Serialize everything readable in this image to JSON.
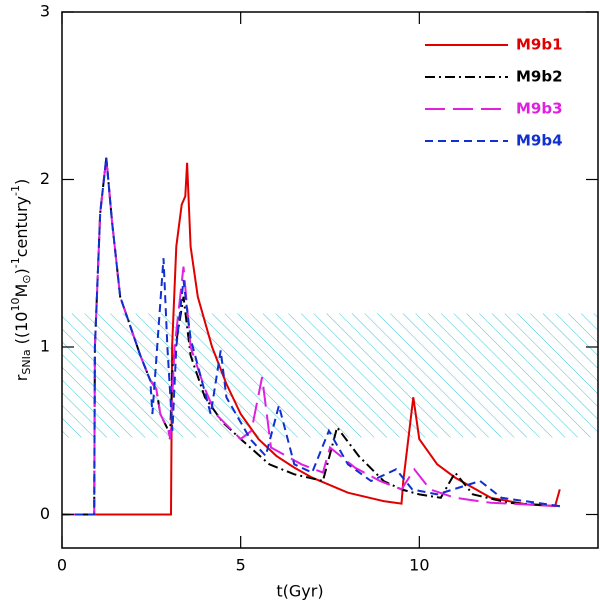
{
  "chart_data": {
    "type": "line",
    "xlabel": "t(Gyr)",
    "ylabel": [
      "r",
      "SNIa",
      " ((10",
      "10",
      "M",
      "⊙",
      ")",
      "-1",
      "century",
      "-1",
      ")"
    ],
    "xlim": [
      0,
      15
    ],
    "xticks": [
      0,
      5,
      10
    ],
    "ylim": [
      -0.2,
      3
    ],
    "yticks": [
      0,
      1,
      2,
      3
    ],
    "band": [
      0.46,
      1.2
    ],
    "band_color": "#40c8d8",
    "legend": "upper right",
    "series": [
      {
        "name": "M9b1",
        "color": "#e00000",
        "dash": "solid",
        "x": [
          0,
          3.05,
          3.08,
          3.2,
          3.35,
          3.45,
          3.5,
          3.6,
          3.8,
          4.2,
          4.6,
          5.0,
          5.5,
          6.0,
          6.5,
          7.0,
          8.0,
          9.0,
          9.5,
          9.55,
          9.83,
          10.0,
          10.5,
          11.0,
          12.0,
          13.0,
          13.8,
          13.93
        ],
        "values": [
          0,
          0,
          1.0,
          1.6,
          1.85,
          1.9,
          2.1,
          1.6,
          1.3,
          1.0,
          0.78,
          0.6,
          0.45,
          0.35,
          0.28,
          0.22,
          0.13,
          0.08,
          0.065,
          0.2,
          0.7,
          0.45,
          0.3,
          0.22,
          0.1,
          0.06,
          0.05,
          0.15
        ]
      },
      {
        "name": "M9b2",
        "color": "#000000",
        "dash": "dashdot",
        "x": [
          0,
          0.9,
          0.92,
          1.07,
          1.24,
          1.4,
          1.63,
          2.19,
          2.47,
          2.64,
          2.75,
          2.98,
          3.02,
          3.1,
          3.4,
          3.6,
          4.0,
          4.5,
          5.0,
          5.8,
          6.5,
          7.3,
          7.7,
          8.3,
          9.0,
          9.5,
          10.0,
          10.6,
          11.0,
          11.5,
          12.5,
          13.93
        ],
        "values": [
          0,
          0,
          1.0,
          1.8,
          2.13,
          1.75,
          1.3,
          0.95,
          0.8,
          0.75,
          0.6,
          0.5,
          0.45,
          0.9,
          1.3,
          0.95,
          0.7,
          0.55,
          0.45,
          0.3,
          0.24,
          0.2,
          0.52,
          0.35,
          0.2,
          0.15,
          0.12,
          0.1,
          0.25,
          0.12,
          0.07,
          0.05
        ]
      },
      {
        "name": "M9b3",
        "color": "#e020e0",
        "dash": "longdash",
        "x": [
          0,
          0.9,
          0.92,
          1.07,
          1.24,
          1.4,
          1.63,
          2.19,
          2.47,
          2.64,
          2.75,
          2.98,
          3.03,
          3.15,
          3.4,
          3.6,
          4.0,
          4.3,
          5.0,
          5.3,
          5.6,
          5.85,
          6.7,
          7.3,
          7.5,
          8.2,
          8.9,
          9.5,
          9.86,
          10.3,
          11.0,
          12.0,
          13.93
        ],
        "values": [
          0,
          0,
          1.0,
          1.8,
          2.13,
          1.75,
          1.3,
          0.95,
          0.8,
          0.75,
          0.6,
          0.5,
          0.45,
          1.0,
          1.48,
          1.0,
          0.75,
          0.6,
          0.45,
          0.5,
          0.82,
          0.4,
          0.3,
          0.25,
          0.4,
          0.28,
          0.2,
          0.15,
          0.27,
          0.15,
          0.1,
          0.07,
          0.05
        ]
      },
      {
        "name": "M9b4",
        "color": "#1030d0",
        "dash": "shortdash",
        "x": [
          0,
          0.9,
          0.92,
          1.07,
          1.24,
          1.4,
          1.63,
          2.19,
          2.47,
          2.53,
          2.84,
          2.95,
          3.09,
          3.2,
          3.4,
          3.6,
          4.16,
          4.44,
          4.6,
          5.27,
          5.7,
          6.07,
          6.5,
          7.0,
          7.47,
          8.0,
          8.65,
          9.35,
          9.8,
          10.5,
          11.7,
          12.3,
          13.93
        ],
        "values": [
          0,
          0,
          1.0,
          1.8,
          2.13,
          1.75,
          1.3,
          0.95,
          0.8,
          0.6,
          1.53,
          1.0,
          0.5,
          1.0,
          1.4,
          1.05,
          0.6,
          0.98,
          0.7,
          0.45,
          0.35,
          0.65,
          0.3,
          0.25,
          0.5,
          0.3,
          0.2,
          0.27,
          0.15,
          0.12,
          0.2,
          0.1,
          0.05
        ]
      }
    ]
  }
}
